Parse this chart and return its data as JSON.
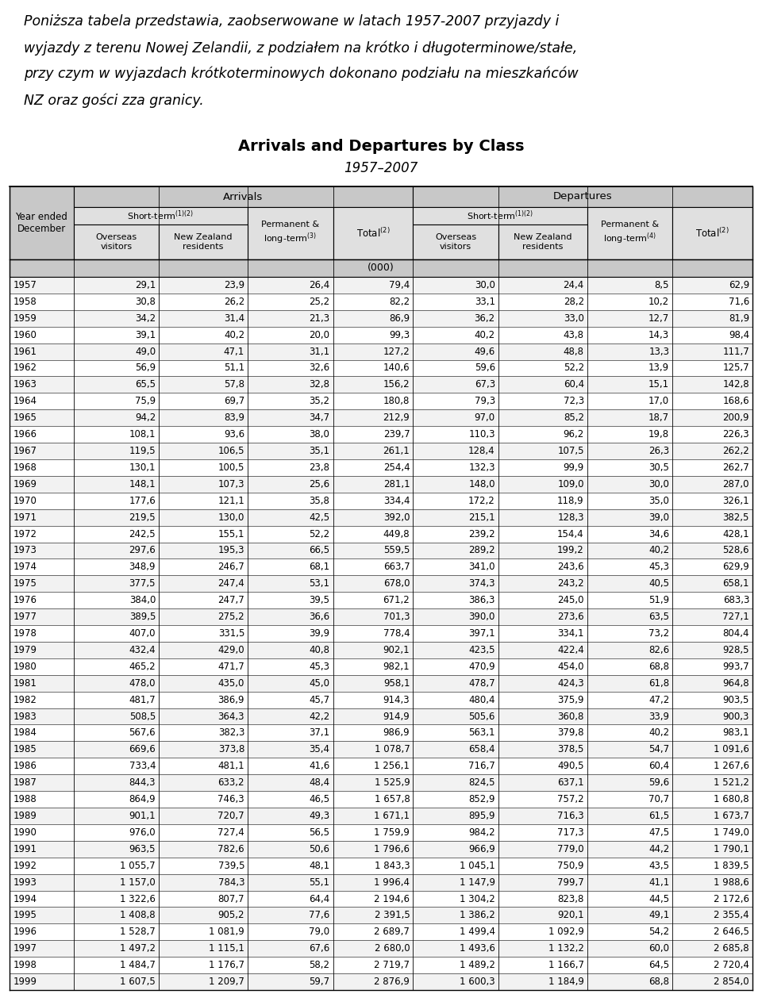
{
  "intro_lines": [
    "Poniższa tabela przedstawia, zaobserwowane w latach 1957-2007 przyjazdy i",
    "wyjazdy z terenu Nowej Zelandii, z podziałem na krótko i długoterminowe/stałe,",
    "przy czym w wyjazdach krótkoterminowych dokonano podziału na mieszkańców",
    "NZ oraz gości zza granicy."
  ],
  "title": "Arrivals and Departures by Class",
  "subtitle": "1957–2007",
  "rows": [
    [
      "1957",
      "29,1",
      "23,9",
      "26,4",
      "79,4",
      "30,0",
      "24,4",
      "8,5",
      "62,9"
    ],
    [
      "1958",
      "30,8",
      "26,2",
      "25,2",
      "82,2",
      "33,1",
      "28,2",
      "10,2",
      "71,6"
    ],
    [
      "1959",
      "34,2",
      "31,4",
      "21,3",
      "86,9",
      "36,2",
      "33,0",
      "12,7",
      "81,9"
    ],
    [
      "1960",
      "39,1",
      "40,2",
      "20,0",
      "99,3",
      "40,2",
      "43,8",
      "14,3",
      "98,4"
    ],
    [
      "1961",
      "49,0",
      "47,1",
      "31,1",
      "127,2",
      "49,6",
      "48,8",
      "13,3",
      "111,7"
    ],
    [
      "1962",
      "56,9",
      "51,1",
      "32,6",
      "140,6",
      "59,6",
      "52,2",
      "13,9",
      "125,7"
    ],
    [
      "1963",
      "65,5",
      "57,8",
      "32,8",
      "156,2",
      "67,3",
      "60,4",
      "15,1",
      "142,8"
    ],
    [
      "1964",
      "75,9",
      "69,7",
      "35,2",
      "180,8",
      "79,3",
      "72,3",
      "17,0",
      "168,6"
    ],
    [
      "1965",
      "94,2",
      "83,9",
      "34,7",
      "212,9",
      "97,0",
      "85,2",
      "18,7",
      "200,9"
    ],
    [
      "1966",
      "108,1",
      "93,6",
      "38,0",
      "239,7",
      "110,3",
      "96,2",
      "19,8",
      "226,3"
    ],
    [
      "1967",
      "119,5",
      "106,5",
      "35,1",
      "261,1",
      "128,4",
      "107,5",
      "26,3",
      "262,2"
    ],
    [
      "1968",
      "130,1",
      "100,5",
      "23,8",
      "254,4",
      "132,3",
      "99,9",
      "30,5",
      "262,7"
    ],
    [
      "1969",
      "148,1",
      "107,3",
      "25,6",
      "281,1",
      "148,0",
      "109,0",
      "30,0",
      "287,0"
    ],
    [
      "1970",
      "177,6",
      "121,1",
      "35,8",
      "334,4",
      "172,2",
      "118,9",
      "35,0",
      "326,1"
    ],
    [
      "1971",
      "219,5",
      "130,0",
      "42,5",
      "392,0",
      "215,1",
      "128,3",
      "39,0",
      "382,5"
    ],
    [
      "1972",
      "242,5",
      "155,1",
      "52,2",
      "449,8",
      "239,2",
      "154,4",
      "34,6",
      "428,1"
    ],
    [
      "1973",
      "297,6",
      "195,3",
      "66,5",
      "559,5",
      "289,2",
      "199,2",
      "40,2",
      "528,6"
    ],
    [
      "1974",
      "348,9",
      "246,7",
      "68,1",
      "663,7",
      "341,0",
      "243,6",
      "45,3",
      "629,9"
    ],
    [
      "1975",
      "377,5",
      "247,4",
      "53,1",
      "678,0",
      "374,3",
      "243,2",
      "40,5",
      "658,1"
    ],
    [
      "1976",
      "384,0",
      "247,7",
      "39,5",
      "671,2",
      "386,3",
      "245,0",
      "51,9",
      "683,3"
    ],
    [
      "1977",
      "389,5",
      "275,2",
      "36,6",
      "701,3",
      "390,0",
      "273,6",
      "63,5",
      "727,1"
    ],
    [
      "1978",
      "407,0",
      "331,5",
      "39,9",
      "778,4",
      "397,1",
      "334,1",
      "73,2",
      "804,4"
    ],
    [
      "1979",
      "432,4",
      "429,0",
      "40,8",
      "902,1",
      "423,5",
      "422,4",
      "82,6",
      "928,5"
    ],
    [
      "1980",
      "465,2",
      "471,7",
      "45,3",
      "982,1",
      "470,9",
      "454,0",
      "68,8",
      "993,7"
    ],
    [
      "1981",
      "478,0",
      "435,0",
      "45,0",
      "958,1",
      "478,7",
      "424,3",
      "61,8",
      "964,8"
    ],
    [
      "1982",
      "481,7",
      "386,9",
      "45,7",
      "914,3",
      "480,4",
      "375,9",
      "47,2",
      "903,5"
    ],
    [
      "1983",
      "508,5",
      "364,3",
      "42,2",
      "914,9",
      "505,6",
      "360,8",
      "33,9",
      "900,3"
    ],
    [
      "1984",
      "567,6",
      "382,3",
      "37,1",
      "986,9",
      "563,1",
      "379,8",
      "40,2",
      "983,1"
    ],
    [
      "1985",
      "669,6",
      "373,8",
      "35,4",
      "1 078,7",
      "658,4",
      "378,5",
      "54,7",
      "1 091,6"
    ],
    [
      "1986",
      "733,4",
      "481,1",
      "41,6",
      "1 256,1",
      "716,7",
      "490,5",
      "60,4",
      "1 267,6"
    ],
    [
      "1987",
      "844,3",
      "633,2",
      "48,4",
      "1 525,9",
      "824,5",
      "637,1",
      "59,6",
      "1 521,2"
    ],
    [
      "1988",
      "864,9",
      "746,3",
      "46,5",
      "1 657,8",
      "852,9",
      "757,2",
      "70,7",
      "1 680,8"
    ],
    [
      "1989",
      "901,1",
      "720,7",
      "49,3",
      "1 671,1",
      "895,9",
      "716,3",
      "61,5",
      "1 673,7"
    ],
    [
      "1990",
      "976,0",
      "727,4",
      "56,5",
      "1 759,9",
      "984,2",
      "717,3",
      "47,5",
      "1 749,0"
    ],
    [
      "1991",
      "963,5",
      "782,6",
      "50,6",
      "1 796,6",
      "966,9",
      "779,0",
      "44,2",
      "1 790,1"
    ],
    [
      "1992",
      "1 055,7",
      "739,5",
      "48,1",
      "1 843,3",
      "1 045,1",
      "750,9",
      "43,5",
      "1 839,5"
    ],
    [
      "1993",
      "1 157,0",
      "784,3",
      "55,1",
      "1 996,4",
      "1 147,9",
      "799,7",
      "41,1",
      "1 988,6"
    ],
    [
      "1994",
      "1 322,6",
      "807,7",
      "64,4",
      "2 194,6",
      "1 304,2",
      "823,8",
      "44,5",
      "2 172,6"
    ],
    [
      "1995",
      "1 408,8",
      "905,2",
      "77,6",
      "2 391,5",
      "1 386,2",
      "920,1",
      "49,1",
      "2 355,4"
    ],
    [
      "1996",
      "1 528,7",
      "1 081,9",
      "79,0",
      "2 689,7",
      "1 499,4",
      "1 092,9",
      "54,2",
      "2 646,5"
    ],
    [
      "1997",
      "1 497,2",
      "1 115,1",
      "67,6",
      "2 680,0",
      "1 493,6",
      "1 132,2",
      "60,0",
      "2 685,8"
    ],
    [
      "1998",
      "1 484,7",
      "1 176,7",
      "58,2",
      "2 719,7",
      "1 489,2",
      "1 166,7",
      "64,5",
      "2 720,4"
    ],
    [
      "1999",
      "1 607,5",
      "1 209,7",
      "59,7",
      "2 876,9",
      "1 600,3",
      "1 184,9",
      "68,8",
      "2 854,0"
    ]
  ],
  "bg_color": "#ffffff",
  "header_bg": "#c8c8c8",
  "units_bg": "#c8c8c8",
  "header_bg2": "#e0e0e0",
  "row_bg_even": "#f2f2f2",
  "row_bg_odd": "#ffffff"
}
